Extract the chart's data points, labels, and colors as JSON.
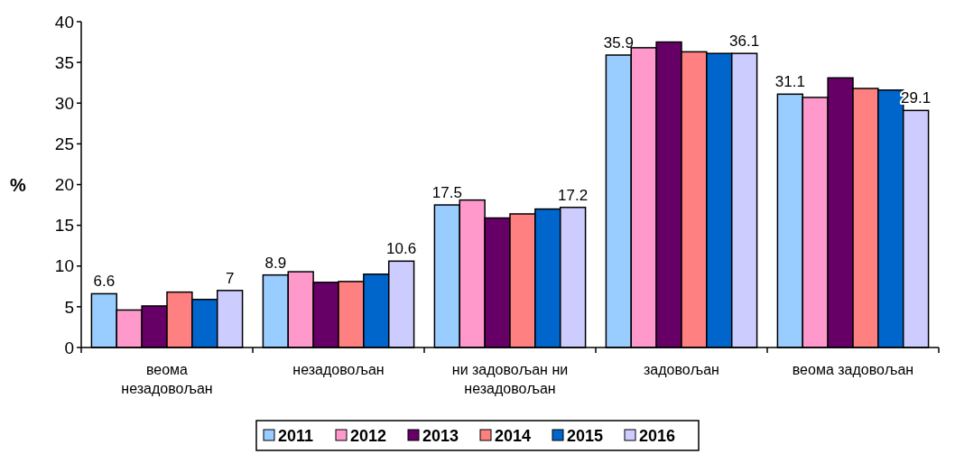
{
  "chart_data": {
    "type": "bar",
    "ylabel": "%",
    "categories": [
      "веома незадовољан",
      "незадовољан",
      "ни задовољан ни незадовољан",
      "задовољан",
      "веома задовољан"
    ],
    "series": [
      {
        "name": "2011",
        "color": "#99ccff",
        "values": [
          6.6,
          8.9,
          17.5,
          35.9,
          31.1
        ],
        "value_labels": [
          "6.6",
          "8.9",
          "17.5",
          "35.9",
          "31.1"
        ]
      },
      {
        "name": "2012",
        "color": "#ff99cc",
        "values": [
          4.6,
          9.3,
          18.1,
          36.8,
          30.7
        ]
      },
      {
        "name": "2013",
        "color": "#660066",
        "values": [
          5.1,
          8.0,
          15.9,
          37.5,
          33.1
        ]
      },
      {
        "name": "2014",
        "color": "#ff8080",
        "values": [
          6.8,
          8.1,
          16.4,
          36.3,
          31.8
        ]
      },
      {
        "name": "2015",
        "color": "#0066cc",
        "values": [
          5.9,
          9.0,
          17.0,
          36.1,
          31.6
        ]
      },
      {
        "name": "2016",
        "color": "#ccccff",
        "values": [
          7,
          10.6,
          17.2,
          36.1,
          29.1
        ],
        "value_labels": [
          "7",
          "10.6",
          "17.2",
          "36.1",
          "29.1"
        ]
      }
    ],
    "ylim": [
      0,
      40
    ],
    "yticks": [
      0,
      5,
      10,
      15,
      20,
      25,
      30,
      35,
      40
    ],
    "grid": false,
    "legend": "bottom"
  }
}
